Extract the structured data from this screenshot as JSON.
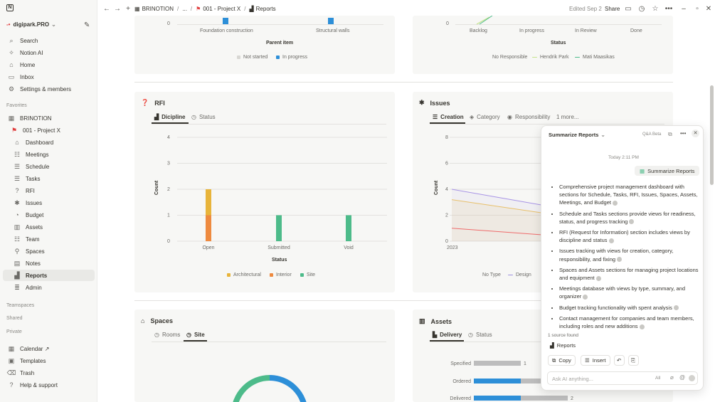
{
  "sidebar": {
    "workspace": "digipark.PRO",
    "top": [
      {
        "label": "Search",
        "icon": "search-icon"
      },
      {
        "label": "Notion AI",
        "icon": "sparkle-icon"
      },
      {
        "label": "Home",
        "icon": "home-icon"
      },
      {
        "label": "Inbox",
        "icon": "inbox-icon"
      },
      {
        "label": "Settings & members",
        "icon": "gear-icon"
      }
    ],
    "favorites_label": "Favorites",
    "favorites": [
      {
        "label": "BRINOTION",
        "icon": "globe-icon"
      },
      {
        "label": "001 - Project X",
        "icon": "project-icon"
      },
      {
        "label": "Dashboard",
        "icon": "house-icon"
      },
      {
        "label": "Meetings",
        "icon": "people-icon"
      },
      {
        "label": "Schedule",
        "icon": "schedule-icon"
      },
      {
        "label": "Tasks",
        "icon": "list-icon"
      },
      {
        "label": "RFI",
        "icon": "question-icon"
      },
      {
        "label": "Issues",
        "icon": "bug-icon"
      },
      {
        "label": "Budget",
        "icon": "budget-icon"
      },
      {
        "label": "Assets",
        "icon": "assets-icon"
      },
      {
        "label": "Team",
        "icon": "team-icon"
      },
      {
        "label": "Spaces",
        "icon": "pin-icon"
      },
      {
        "label": "Notes",
        "icon": "note-icon"
      },
      {
        "label": "Reports",
        "icon": "reports-icon"
      },
      {
        "label": "Admin",
        "icon": "database-icon"
      }
    ],
    "teamspaces_label": "Teamspaces",
    "shared_label": "Shared",
    "private_label": "Private",
    "bottom": [
      {
        "label": "Calendar ↗",
        "icon": "calendar-icon"
      },
      {
        "label": "Templates",
        "icon": "templates-icon"
      },
      {
        "label": "Trash",
        "icon": "trash-icon"
      },
      {
        "label": "Help & support",
        "icon": "help-icon"
      }
    ]
  },
  "topbar": {
    "crumb1": "BRINOTION",
    "crumb_sep1": "/",
    "crumb_ellipsis": "...",
    "crumb_sep2": "/",
    "crumb2": "001 - Project X",
    "crumb_sep3": "/",
    "crumb3": "Reports",
    "edited": "Edited Sep 2",
    "share": "Share"
  },
  "top_left_card": {
    "y_zero": "0",
    "cat1": "Foundation construction",
    "cat2": "Structural walls",
    "xlabel": "Parent item",
    "legend": [
      "Not started",
      "In progress"
    ]
  },
  "top_right_card": {
    "y_zero": "0",
    "cats": [
      "Backlog",
      "In progress",
      "In Review",
      "Done"
    ],
    "xlabel": "Status",
    "legend": [
      "No Responsible",
      "Hendrik Park",
      "Mati Maasikas"
    ]
  },
  "rfi": {
    "title": "RFI",
    "tabs": [
      "Dicipline",
      "Status"
    ],
    "xlabel": "Status",
    "ylabel": "Count",
    "legend": [
      "Architectural",
      "Interior",
      "Site"
    ]
  },
  "issues": {
    "title": "Issues",
    "tabs": [
      "Creation",
      "Category",
      "Responsibility",
      "1 more..."
    ],
    "ylabel": "Count",
    "x_start": "2023",
    "legend": [
      "No Type",
      "Design"
    ]
  },
  "spaces": {
    "title": "Spaces",
    "tabs": [
      "Rooms",
      "Site"
    ]
  },
  "assets": {
    "title": "Assets",
    "tabs": [
      "Delivery",
      "Status"
    ]
  },
  "ai": {
    "title": "Summarize Reports",
    "badge": "Q&A Beta",
    "time": "Today 2:11 PM",
    "user_msg": "Summarize Reports",
    "bullets": [
      "Comprehensive project management dashboard with sections for Schedule, Tasks, RFI, Issues, Spaces, Assets, Meetings, and Budget",
      "Schedule and Tasks sections provide views for readiness, status, and progress tracking",
      "RFI (Request for Information) section includes views by discipline and status",
      "Issues tracking with views for creation, category, responsibility, and fixing",
      "Spaces and Assets sections for managing project locations and equipment",
      "Meetings database with views by type, summary, and organizer",
      "Budget tracking functionality with spent analysis",
      "Contact management for companies and team members, including roles and new additions"
    ],
    "source_count": "1 source found",
    "source": "Reports",
    "copy": "Copy",
    "insert": "Insert",
    "input_placeholder": "Ask AI anything...",
    "scope": "All"
  },
  "chart_data": [
    {
      "type": "bar",
      "title": "RFI",
      "categories": [
        "Open",
        "Submitted",
        "Void"
      ],
      "series": [
        {
          "name": "Architectural",
          "values": [
            1,
            0,
            0
          ]
        },
        {
          "name": "Interior",
          "values": [
            1,
            0,
            0
          ]
        },
        {
          "name": "Site",
          "values": [
            0,
            1,
            1
          ]
        }
      ],
      "xlabel": "Status",
      "ylabel": "Count",
      "ylim": [
        0,
        4
      ],
      "yticks": [
        "0",
        "1",
        "2",
        "3",
        "4"
      ],
      "colors": [
        "#e8b43a",
        "#ee8a3f",
        "#4dbb8a"
      ]
    },
    {
      "type": "bar",
      "title": "Assets",
      "categories": [
        "Specified",
        "Ordered",
        "Delivered"
      ],
      "series": [
        {
          "name": "a",
          "values": [
            1,
            1,
            1
          ]
        },
        {
          "name": "b",
          "values": [
            0,
            1,
            1
          ]
        }
      ],
      "labels": [
        "1",
        "",
        "2"
      ],
      "colors": [
        "#bdbdbd",
        "#2d8fd8"
      ]
    },
    {
      "type": "area",
      "title": "Issues",
      "yticks": [
        "0",
        "2",
        "4",
        "6",
        "8"
      ],
      "ylim": [
        0,
        8
      ],
      "series": [
        {
          "name": "purple",
          "values": [
            4,
            2.8
          ]
        },
        {
          "name": "yellow",
          "values": [
            3.2,
            2.2
          ]
        },
        {
          "name": "red",
          "values": [
            1,
            0.5
          ]
        }
      ]
    }
  ]
}
